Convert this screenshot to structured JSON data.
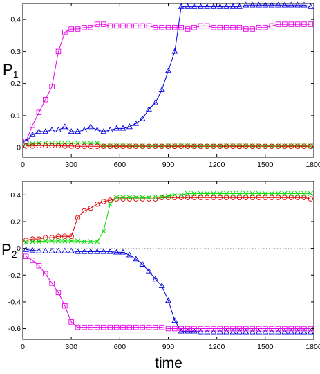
{
  "colors": {
    "magenta": "#e600e6",
    "blue": "#0000dd",
    "green": "#00dd00",
    "red": "#dd0000",
    "zero_line": "#9a9a9a"
  },
  "xlabel": "time",
  "chart_data": [
    {
      "type": "line",
      "ylabel_main": "P",
      "ylabel_sub": "1",
      "xlim": [
        0,
        1800
      ],
      "ylim": [
        -0.03,
        0.45
      ],
      "xticks": [
        0,
        300,
        600,
        900,
        1200,
        1500,
        1800
      ],
      "yticks": [
        0,
        0.1,
        0.2,
        0.3,
        0.4
      ],
      "ytick_labels": [
        "0",
        "0.1",
        "0.2",
        "0.3",
        "0.4"
      ],
      "zero_line": false,
      "x": [
        20,
        60,
        100,
        140,
        180,
        220,
        260,
        300,
        340,
        380,
        420,
        460,
        500,
        540,
        580,
        620,
        660,
        700,
        740,
        780,
        820,
        860,
        900,
        940,
        980,
        1020,
        1060,
        1100,
        1140,
        1180,
        1220,
        1260,
        1300,
        1340,
        1380,
        1420,
        1460,
        1500,
        1540,
        1580,
        1620,
        1660,
        1700,
        1740,
        1780
      ],
      "series": [
        {
          "marker": "square",
          "color": "magenta",
          "values": [
            0.02,
            0.07,
            0.11,
            0.15,
            0.19,
            0.3,
            0.36,
            0.37,
            0.37,
            0.375,
            0.375,
            0.385,
            0.385,
            0.38,
            0.38,
            0.38,
            0.38,
            0.38,
            0.38,
            0.38,
            0.375,
            0.375,
            0.375,
            0.375,
            0.375,
            0.37,
            0.375,
            0.38,
            0.38,
            0.375,
            0.375,
            0.375,
            0.375,
            0.375,
            0.37,
            0.37,
            0.375,
            0.375,
            0.38,
            0.385,
            0.385,
            0.385,
            0.385,
            0.385,
            0.385
          ]
        },
        {
          "marker": "triangle",
          "color": "blue",
          "values": [
            0.02,
            0.04,
            0.05,
            0.05,
            0.055,
            0.055,
            0.065,
            0.05,
            0.05,
            0.055,
            0.065,
            0.055,
            0.05,
            0.055,
            0.06,
            0.06,
            0.065,
            0.075,
            0.09,
            0.12,
            0.14,
            0.18,
            0.24,
            0.3,
            0.44,
            0.44,
            0.44,
            0.44,
            0.44,
            0.44,
            0.44,
            0.44,
            0.44,
            0.44,
            0.445,
            0.445,
            0.445,
            0.445,
            0.445,
            0.445,
            0.445,
            0.445,
            0.445,
            0.445,
            0.44
          ]
        },
        {
          "marker": "x",
          "color": "green",
          "values": [
            0.01,
            0.012,
            0.014,
            0.014,
            0.013,
            0.013,
            0.013,
            0.013,
            0.014,
            0.014,
            0.013,
            0.014,
            0.005,
            0.005,
            0.005,
            0.005,
            0.005,
            0.005,
            0.005,
            0.005,
            0.005,
            0.005,
            0.005,
            0.005,
            0.005,
            0.005,
            0.005,
            0.005,
            0.005,
            0.005,
            0.005,
            0.005,
            0.005,
            0.005,
            0.005,
            0.005,
            0.005,
            0.005,
            0.005,
            0.005,
            0.005,
            0.005,
            0.005,
            0.005,
            0.005
          ]
        },
        {
          "marker": "circle",
          "color": "red",
          "values": [
            0.005,
            0.005,
            0.006,
            0.006,
            0.006,
            0.006,
            0.005,
            0.005,
            0.004,
            0.004,
            0.004,
            0.004,
            0.004,
            0.004,
            0.004,
            0.004,
            0.004,
            0.004,
            0.004,
            0.004,
            0.004,
            0.004,
            0.004,
            0.004,
            0.004,
            0.004,
            0.004,
            0.004,
            0.004,
            0.004,
            0.004,
            0.004,
            0.004,
            0.004,
            0.004,
            0.004,
            0.004,
            0.004,
            0.004,
            0.004,
            0.004,
            0.004,
            0.004,
            0.004,
            0.004
          ]
        }
      ]
    },
    {
      "type": "line",
      "ylabel_main": "P",
      "ylabel_sub": "2",
      "xlim": [
        0,
        1800
      ],
      "ylim": [
        -0.68,
        0.5
      ],
      "xticks": [
        0,
        300,
        600,
        900,
        1200,
        1500,
        1800
      ],
      "yticks": [
        -0.6,
        -0.4,
        -0.2,
        0,
        0.2,
        0.4
      ],
      "ytick_labels": [
        "-0.6",
        "-0.4",
        "-0.2",
        "0",
        "0.2",
        "0.4"
      ],
      "zero_line": true,
      "x": [
        20,
        60,
        100,
        140,
        180,
        220,
        260,
        300,
        340,
        380,
        420,
        460,
        500,
        540,
        580,
        620,
        660,
        700,
        740,
        780,
        820,
        860,
        900,
        940,
        980,
        1020,
        1060,
        1100,
        1140,
        1180,
        1220,
        1260,
        1300,
        1340,
        1380,
        1420,
        1460,
        1500,
        1540,
        1580,
        1620,
        1660,
        1700,
        1740,
        1780
      ],
      "series": [
        {
          "marker": "circle",
          "color": "red",
          "values": [
            0.06,
            0.07,
            0.07,
            0.08,
            0.08,
            0.09,
            0.09,
            0.09,
            0.23,
            0.28,
            0.3,
            0.33,
            0.35,
            0.36,
            0.37,
            0.37,
            0.37,
            0.37,
            0.37,
            0.37,
            0.37,
            0.38,
            0.38,
            0.38,
            0.38,
            0.38,
            0.38,
            0.38,
            0.38,
            0.38,
            0.38,
            0.38,
            0.38,
            0.38,
            0.38,
            0.38,
            0.38,
            0.38,
            0.38,
            0.38,
            0.38,
            0.38,
            0.38,
            0.38,
            0.37
          ]
        },
        {
          "marker": "x",
          "color": "green",
          "values": [
            0.045,
            0.05,
            0.05,
            0.055,
            0.055,
            0.055,
            0.055,
            0.055,
            0.055,
            0.05,
            0.05,
            0.05,
            0.13,
            0.33,
            0.38,
            0.38,
            0.38,
            0.38,
            0.38,
            0.38,
            0.385,
            0.385,
            0.39,
            0.4,
            0.4,
            0.41,
            0.41,
            0.41,
            0.41,
            0.41,
            0.41,
            0.41,
            0.41,
            0.41,
            0.41,
            0.41,
            0.41,
            0.41,
            0.41,
            0.41,
            0.41,
            0.41,
            0.41,
            0.41,
            0.41
          ]
        },
        {
          "marker": "triangle",
          "color": "blue",
          "values": [
            -0.01,
            -0.015,
            -0.02,
            -0.02,
            -0.02,
            -0.02,
            -0.02,
            -0.02,
            -0.025,
            -0.025,
            -0.025,
            -0.025,
            -0.025,
            -0.025,
            -0.03,
            -0.03,
            -0.05,
            -0.08,
            -0.12,
            -0.17,
            -0.23,
            -0.28,
            -0.39,
            -0.54,
            -0.62,
            -0.62,
            -0.62,
            -0.625,
            -0.625,
            -0.625,
            -0.625,
            -0.625,
            -0.625,
            -0.625,
            -0.625,
            -0.625,
            -0.625,
            -0.625,
            -0.625,
            -0.625,
            -0.625,
            -0.625,
            -0.625,
            -0.625,
            -0.625
          ]
        },
        {
          "marker": "square",
          "color": "magenta",
          "values": [
            -0.06,
            -0.09,
            -0.13,
            -0.19,
            -0.26,
            -0.33,
            -0.43,
            -0.55,
            -0.59,
            -0.59,
            -0.59,
            -0.59,
            -0.59,
            -0.59,
            -0.59,
            -0.59,
            -0.59,
            -0.59,
            -0.59,
            -0.59,
            -0.59,
            -0.59,
            -0.6,
            -0.6,
            -0.6,
            -0.6,
            -0.6,
            -0.6,
            -0.6,
            -0.6,
            -0.6,
            -0.6,
            -0.6,
            -0.6,
            -0.6,
            -0.6,
            -0.6,
            -0.6,
            -0.6,
            -0.6,
            -0.6,
            -0.6,
            -0.6,
            -0.6,
            -0.6
          ]
        }
      ]
    }
  ]
}
